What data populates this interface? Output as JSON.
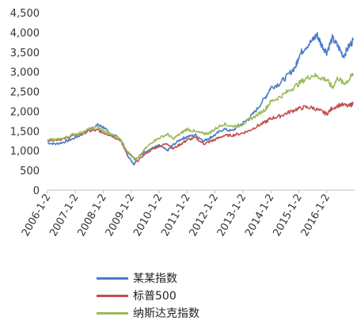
{
  "chart_data": {
    "type": "line",
    "grid": false,
    "legend_position": "bottom",
    "ylim": [
      0,
      4500
    ],
    "yticks": [
      "0",
      "500",
      "1,000",
      "1,500",
      "2,000",
      "2,500",
      "3,000",
      "3,500",
      "4,000",
      "4,500"
    ],
    "ytick_values": [
      0,
      500,
      1000,
      1500,
      2000,
      2500,
      3000,
      3500,
      4000,
      4500
    ],
    "xlim": [
      2006.0,
      2017.0
    ],
    "xticks": [
      "2006-1-2",
      "2007-1-2",
      "2008-1-2",
      "2009-1-2",
      "2010-1-2",
      "2011-1-2",
      "2012-1-2",
      "2013-1-2",
      "2014-1-2",
      "2015-1-2",
      "2016-1-2"
    ],
    "xtick_values": [
      2006,
      2007,
      2008,
      2009,
      2010,
      2011,
      2012,
      2013,
      2014,
      2015,
      2016
    ],
    "series": [
      {
        "name": "某某指数",
        "color": "#4a7cc4",
        "x": [
          2006.0,
          2006.3,
          2006.6,
          2006.9,
          2007.2,
          2007.5,
          2007.8,
          2008.0,
          2008.2,
          2008.5,
          2008.7,
          2008.85,
          2009.0,
          2009.1,
          2009.2,
          2009.5,
          2009.8,
          2010.0,
          2010.3,
          2010.5,
          2010.8,
          2011.0,
          2011.3,
          2011.6,
          2011.8,
          2012.0,
          2012.3,
          2012.6,
          2012.9,
          2013.2,
          2013.5,
          2013.8,
          2014.0,
          2014.3,
          2014.6,
          2014.9,
          2015.0,
          2015.2,
          2015.5,
          2015.65,
          2015.8,
          2016.0,
          2016.2,
          2016.4,
          2016.6,
          2016.8,
          2016.95
        ],
        "y": [
          1200,
          1170,
          1220,
          1300,
          1400,
          1550,
          1650,
          1600,
          1450,
          1350,
          1200,
          900,
          750,
          650,
          800,
          980,
          1080,
          1130,
          1000,
          1150,
          1300,
          1350,
          1400,
          1250,
          1320,
          1400,
          1550,
          1500,
          1650,
          1800,
          2050,
          2350,
          2600,
          2700,
          2900,
          3150,
          3400,
          3600,
          3800,
          3950,
          3700,
          3500,
          3850,
          3650,
          3400,
          3650,
          3800
        ]
      },
      {
        "name": "标普500",
        "color": "#c0504d",
        "x": [
          2006.0,
          2006.3,
          2006.6,
          2006.9,
          2007.2,
          2007.5,
          2007.8,
          2008.0,
          2008.3,
          2008.6,
          2008.8,
          2009.0,
          2009.2,
          2009.5,
          2009.8,
          2010.0,
          2010.3,
          2010.5,
          2010.8,
          2011.0,
          2011.3,
          2011.6,
          2011.8,
          2012.0,
          2012.3,
          2012.6,
          2012.9,
          2013.2,
          2013.5,
          2013.8,
          2014.0,
          2014.3,
          2014.6,
          2014.9,
          2015.2,
          2015.5,
          2015.8,
          2016.0,
          2016.2,
          2016.5,
          2016.8,
          2016.95
        ],
        "y": [
          1270,
          1280,
          1300,
          1380,
          1430,
          1500,
          1520,
          1460,
          1380,
          1270,
          1000,
          880,
          720,
          920,
          1050,
          1120,
          1180,
          1050,
          1180,
          1270,
          1330,
          1170,
          1230,
          1280,
          1380,
          1390,
          1430,
          1500,
          1620,
          1720,
          1820,
          1870,
          1960,
          2050,
          2100,
          2090,
          2000,
          1930,
          2080,
          2170,
          2130,
          2200
        ]
      },
      {
        "name": "纳斯达克指数",
        "color": "#9bbb59",
        "x": [
          2006.0,
          2006.3,
          2006.6,
          2006.9,
          2007.2,
          2007.5,
          2007.8,
          2008.0,
          2008.3,
          2008.6,
          2008.8,
          2009.0,
          2009.2,
          2009.5,
          2009.8,
          2010.0,
          2010.3,
          2010.5,
          2010.8,
          2011.0,
          2011.3,
          2011.6,
          2011.8,
          2012.0,
          2012.3,
          2012.6,
          2012.9,
          2013.2,
          2013.5,
          2013.8,
          2014.0,
          2014.3,
          2014.6,
          2014.9,
          2015.2,
          2015.5,
          2015.8,
          2016.0,
          2016.2,
          2016.4,
          2016.6,
          2016.8,
          2016.95
        ],
        "y": [
          1300,
          1270,
          1320,
          1410,
          1450,
          1550,
          1600,
          1500,
          1400,
          1300,
          1050,
          870,
          780,
          1050,
          1250,
          1320,
          1420,
          1300,
          1450,
          1550,
          1480,
          1430,
          1450,
          1550,
          1680,
          1620,
          1640,
          1780,
          1900,
          2050,
          2250,
          2350,
          2500,
          2650,
          2800,
          2920,
          2850,
          2800,
          2600,
          2850,
          2700,
          2800,
          2950
        ]
      }
    ]
  }
}
